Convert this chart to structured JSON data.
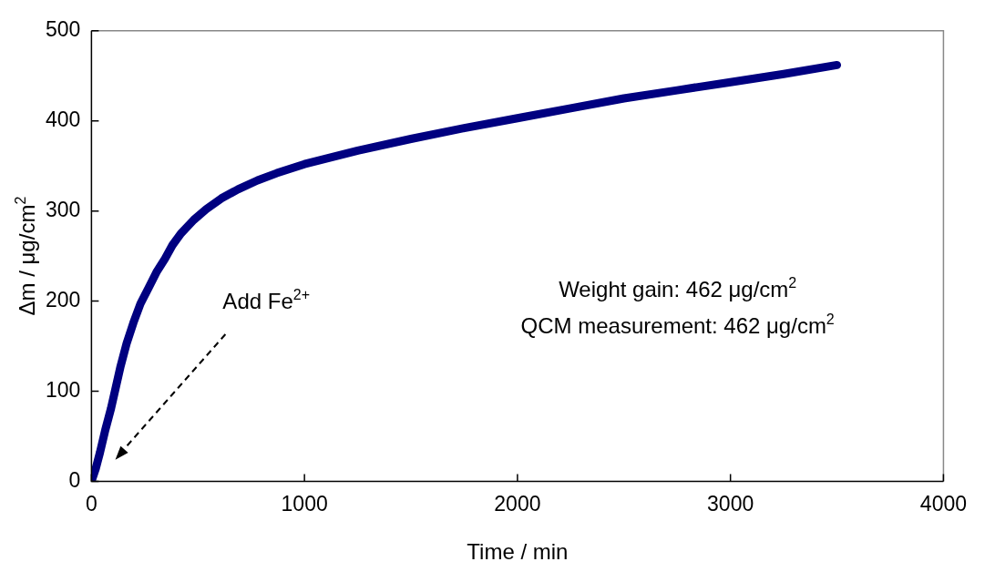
{
  "chart_data": {
    "type": "line",
    "xlabel": "Time / min",
    "ylabel": "Δm / μg/cm$^{2}$",
    "x": [
      0,
      20,
      40,
      65,
      92,
      115,
      137,
      165,
      197,
      230,
      271,
      305,
      345,
      380,
      420,
      480,
      539,
      610,
      688,
      780,
      870,
      1000,
      1250,
      1500,
      1750,
      2000,
      2250,
      2500,
      2750,
      3000,
      3250,
      3500
    ],
    "series": [
      {
        "color": "#000080",
        "values": [
          0,
          14,
          32,
          57,
          81,
          105,
          128,
          153,
          176,
          197,
          216,
          232,
          247,
          262,
          275,
          290,
          302,
          314,
          324,
          334,
          342,
          352,
          367,
          380,
          392,
          403,
          414,
          425,
          434,
          443,
          452,
          462
        ]
      }
    ],
    "xlim": [
      0,
      4000
    ],
    "xticks": [
      0,
      1000,
      2000,
      3000,
      4000
    ],
    "ylim": [
      0,
      500
    ],
    "yticks": [
      0,
      100,
      200,
      300,
      400,
      500
    ],
    "grid": false,
    "legend": false,
    "annotations": [
      "Add Fe$^{2+}$",
      "Weight gain: 462 μg/cm$^{2}$",
      "QCM measurement: 462 μg/cm$^{2}$"
    ]
  }
}
